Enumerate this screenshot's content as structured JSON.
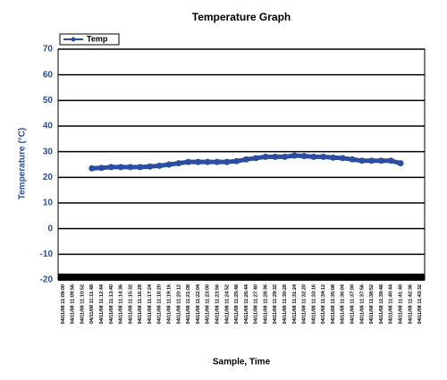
{
  "chart_data": {
    "type": "line",
    "title": "Temperature Graph",
    "x_label": "Sample, Time",
    "y_label": "Temperature (°C)",
    "categories": [
      "04/11/08 11:09:00",
      "04/11/08 11:09:56",
      "04/11/08 11:10:52",
      "04/11/08 11:11:48",
      "04/11/08 11:12:44",
      "04/11/08 11:13:40",
      "04/11/08 11:14:36",
      "04/11/08 11:15:32",
      "04/11/08 11:16:28",
      "04/11/08 11:17:24",
      "04/11/08 11:18:20",
      "04/11/08 11:19:16",
      "04/11/08 11:20:12",
      "04/11/08 11:21:08",
      "04/11/08 11:22:04",
      "04/11/08 11:23:00",
      "04/11/08 11:23:56",
      "04/11/08 11:24:52",
      "04/11/08 11:25:48",
      "04/11/08 11:26:44",
      "04/11/08 11:27:40",
      "04/11/08 11:28:36",
      "04/11/08 11:29:32",
      "04/11/08 11:30:28",
      "04/11/08 11:31:24",
      "04/11/08 11:32:20",
      "04/11/08 11:33:16",
      "04/11/08 11:34:12",
      "04/11/08 11:35:08",
      "04/11/08 11:36:04",
      "04/11/08 11:37:00",
      "04/11/08 11:37:56",
      "04/11/08 11:38:52",
      "04/11/08 11:39:48",
      "04/11/08 11:40:44",
      "04/11/08 11:41:40",
      "04/11/08 11:42:36",
      "04/11/08 11:43:32"
    ],
    "series": [
      {
        "name": "Temp",
        "color": "#2b4ea2",
        "values": [
          null,
          null,
          null,
          23.5,
          23.7,
          24,
          24,
          24,
          24,
          24.2,
          24.5,
          25,
          25.5,
          26,
          26,
          26,
          26,
          26,
          26.3,
          27,
          27.5,
          28,
          28,
          28,
          28.5,
          28.3,
          28,
          28,
          27.7,
          27.5,
          27,
          26.5,
          26.5,
          26.5,
          26.5,
          25.5,
          null,
          null
        ]
      }
    ],
    "ylim": [
      -20,
      70
    ],
    "yticks": [
      -20,
      -10,
      0,
      10,
      20,
      30,
      40,
      50,
      60,
      70
    ],
    "grid": true,
    "legend": "top-left"
  }
}
